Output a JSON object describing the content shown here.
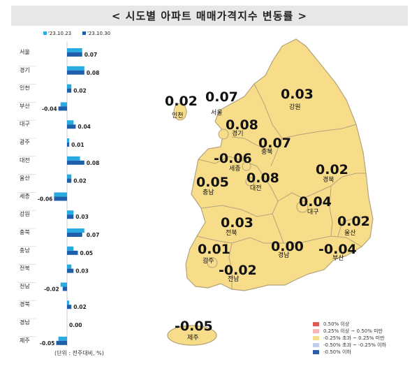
{
  "header": {
    "title": "< 시도별 아파트 매매가격지수 변동률 >"
  },
  "chart_data": {
    "type": "bar",
    "orientation": "horizontal",
    "categories": [
      "서울",
      "경기",
      "인천",
      "부산",
      "대구",
      "광주",
      "대전",
      "울산",
      "세종",
      "강원",
      "충북",
      "충남",
      "전북",
      "전남",
      "경북",
      "경남",
      "제주"
    ],
    "series": [
      {
        "name": "'23.10.23",
        "color": "#29abe2",
        "values": [
          0.07,
          0.08,
          0.02,
          -0.03,
          0.03,
          0.01,
          0.06,
          0.02,
          -0.06,
          0.03,
          0.08,
          0.03,
          0.02,
          -0.03,
          0.01,
          0.0,
          -0.04
        ]
      },
      {
        "name": "'23.10.30",
        "color": "#1f5fa9",
        "values": [
          0.07,
          0.08,
          0.02,
          -0.04,
          0.04,
          0.01,
          0.08,
          0.02,
          -0.06,
          0.03,
          0.07,
          0.05,
          0.03,
          -0.02,
          0.02,
          0.0,
          -0.05
        ]
      }
    ],
    "labels": [
      "0.07",
      "0.08",
      "0.02",
      "-0.04",
      "0.04",
      "0.01",
      "0.08",
      "0.02",
      "-0.06",
      "0.03",
      "0.07",
      "0.05",
      "0.03",
      "-0.02",
      "0.02",
      "0.00",
      "-0.05"
    ],
    "xlim": [
      -0.08,
      0.1
    ],
    "legend": "top",
    "note": "(단위 : 전주대비, %)"
  },
  "map": {
    "regions": [
      {
        "name": "인천",
        "value": "0.02"
      },
      {
        "name": "서울",
        "value": "0.07"
      },
      {
        "name": "강원",
        "value": "0.03"
      },
      {
        "name": "경기",
        "value": "0.08"
      },
      {
        "name": "충북",
        "value": "0.07"
      },
      {
        "name": "세종",
        "value": "-0.06"
      },
      {
        "name": "대전",
        "value": "0.08"
      },
      {
        "name": "충남",
        "value": "0.05"
      },
      {
        "name": "경북",
        "value": "0.02"
      },
      {
        "name": "대구",
        "value": "0.04"
      },
      {
        "name": "울산",
        "value": "0.02"
      },
      {
        "name": "전북",
        "value": "0.03"
      },
      {
        "name": "광주",
        "value": "0.01"
      },
      {
        "name": "경남",
        "value": "0.00"
      },
      {
        "name": "부산",
        "value": "-0.04"
      },
      {
        "name": "전남",
        "value": "-0.02"
      },
      {
        "name": "제주",
        "value": "-0.05"
      }
    ],
    "fill_color": "#f7dc8a",
    "border_color": "#b3a37a"
  },
  "legend": {
    "items": [
      {
        "label": "0.50% 이상",
        "color": "#e05a5a"
      },
      {
        "label": "0.25% 이상 ~ 0.50% 미만",
        "color": "#f4b6b6"
      },
      {
        "label": "-0.25% 초과 ~ 0.25% 미만",
        "color": "#f7dc8a"
      },
      {
        "label": "-0.50% 초과 ~ -0.25% 이하",
        "color": "#bcd0ea"
      },
      {
        "label": "-0.50% 이하",
        "color": "#2f5ea8"
      }
    ]
  }
}
